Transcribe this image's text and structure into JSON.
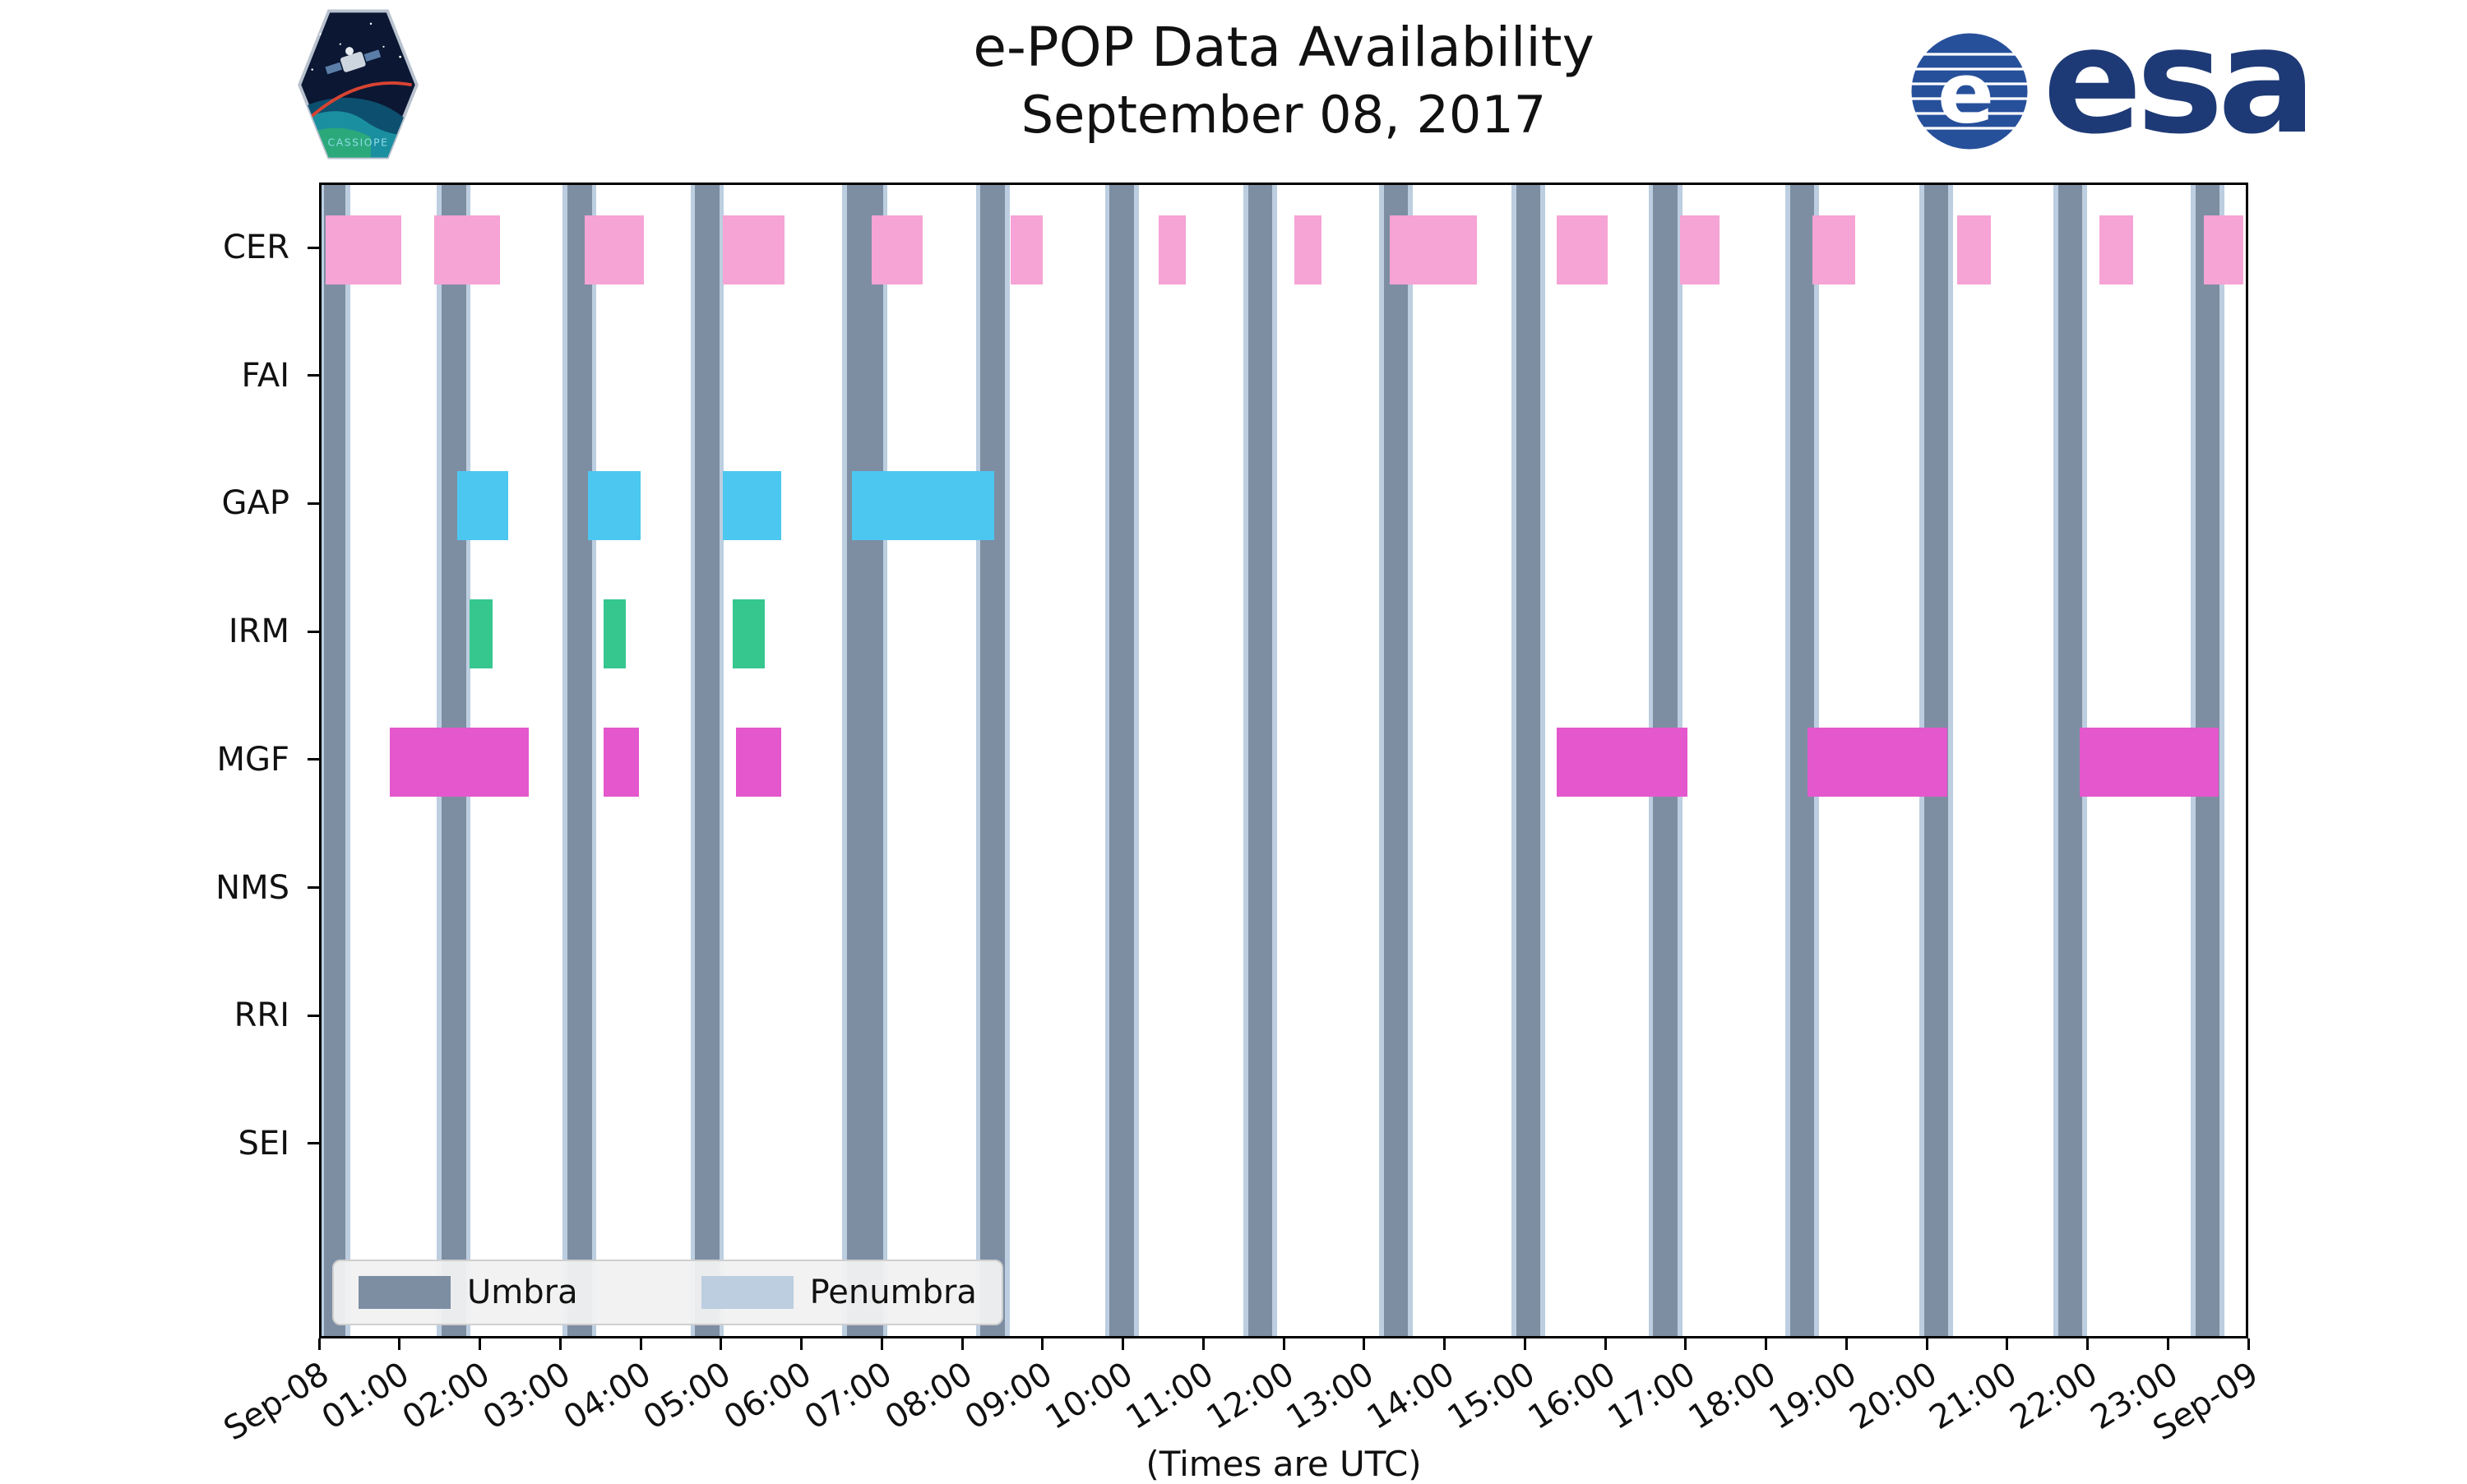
{
  "header": {
    "cassiope_patch_text": "CASSIOPE",
    "esa_wordmark": "esa"
  },
  "branding": {
    "esa_blue": "#1e3a76",
    "patch_sky": "#0b1733",
    "patch_sea": "#1a8fa0"
  },
  "chart_data": {
    "type": "availability-timeline",
    "title": "e-POP Data Availability",
    "subtitle": "September 08, 2017",
    "xlabel": "(Times are UTC)",
    "x_start_hour": 0,
    "x_end_hour": 24,
    "x_tick_labels": [
      "Sep-08",
      "01:00",
      "02:00",
      "03:00",
      "04:00",
      "05:00",
      "06:00",
      "07:00",
      "08:00",
      "09:00",
      "10:00",
      "11:00",
      "12:00",
      "13:00",
      "14:00",
      "15:00",
      "16:00",
      "17:00",
      "18:00",
      "19:00",
      "20:00",
      "21:00",
      "22:00",
      "23:00",
      "Sep-09"
    ],
    "instruments": [
      "CER",
      "FAI",
      "GAP",
      "IRM",
      "MGF",
      "NMS",
      "RRI",
      "SEI"
    ],
    "umbra_color": "#7d8ea3",
    "penumbra_color": "#bccee0",
    "penumbra_edge_hours": 0.06,
    "umbra_intervals_hours": [
      [
        0.03,
        0.3
      ],
      [
        1.5,
        1.8
      ],
      [
        3.07,
        3.37
      ],
      [
        4.66,
        4.96
      ],
      [
        6.55,
        7.0
      ],
      [
        8.22,
        8.52
      ],
      [
        9.83,
        10.13
      ],
      [
        11.56,
        11.86
      ],
      [
        13.25,
        13.55
      ],
      [
        14.9,
        15.2
      ],
      [
        16.61,
        16.91
      ],
      [
        18.32,
        18.62
      ],
      [
        19.99,
        20.29
      ],
      [
        21.66,
        21.96
      ],
      [
        23.37,
        23.67
      ]
    ],
    "series": [
      {
        "name": "CER",
        "color": "#f6a3d5",
        "intervals": [
          [
            0.05,
            1.0
          ],
          [
            1.4,
            2.23
          ],
          [
            3.28,
            4.02
          ],
          [
            5.01,
            5.77
          ],
          [
            6.86,
            7.5
          ],
          [
            8.59,
            8.99
          ],
          [
            10.44,
            10.78
          ],
          [
            12.13,
            12.47
          ],
          [
            13.32,
            14.41
          ],
          [
            15.41,
            16.04
          ],
          [
            16.94,
            17.44
          ],
          [
            18.59,
            19.13
          ],
          [
            20.4,
            20.82
          ],
          [
            22.17,
            22.6
          ],
          [
            23.48,
            23.97
          ]
        ]
      },
      {
        "name": "FAI",
        "color": null,
        "intervals": []
      },
      {
        "name": "GAP",
        "color": "#4cc7f0",
        "intervals": [
          [
            1.69,
            2.33
          ],
          [
            3.32,
            3.98
          ],
          [
            5.01,
            5.73
          ],
          [
            6.62,
            8.39
          ]
        ]
      },
      {
        "name": "IRM",
        "color": "#36c78f",
        "intervals": [
          [
            1.85,
            2.13
          ],
          [
            3.52,
            3.8
          ],
          [
            5.13,
            5.53
          ]
        ]
      },
      {
        "name": "MGF",
        "color": "#e457cd",
        "intervals": [
          [
            0.85,
            2.58
          ],
          [
            3.52,
            3.96
          ],
          [
            5.17,
            5.73
          ],
          [
            15.41,
            17.04
          ],
          [
            18.53,
            20.28
          ],
          [
            21.93,
            23.66
          ]
        ]
      },
      {
        "name": "NMS",
        "color": null,
        "intervals": []
      },
      {
        "name": "RRI",
        "color": null,
        "intervals": []
      },
      {
        "name": "SEI",
        "color": null,
        "intervals": []
      }
    ],
    "legend": [
      {
        "label": "Umbra",
        "color": "#7d8ea3"
      },
      {
        "label": "Penumbra",
        "color": "#bccee0"
      }
    ]
  }
}
